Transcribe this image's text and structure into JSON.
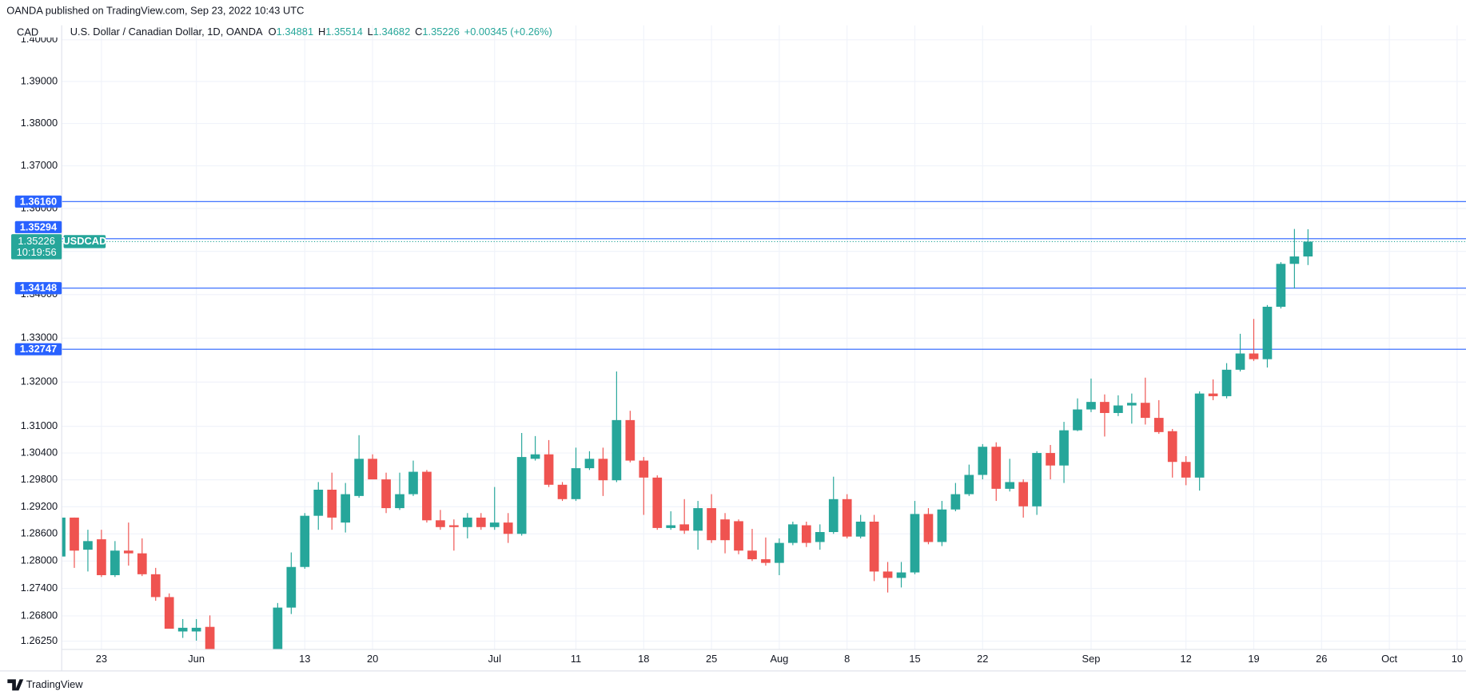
{
  "header": {
    "published": "OANDA published on TradingView.com, Sep 23, 2022 10:43 UTC",
    "footer": "TradingView"
  },
  "chart_data": {
    "type": "candlestick",
    "currency": "CAD",
    "symbol_title": "U.S. Dollar / Canadian Dollar, 1D, OANDA",
    "ohlc_labels": [
      "O",
      "H",
      "L",
      "C"
    ],
    "change": "+0.00345 (+0.26%)",
    "symbol": "USDCAD",
    "countdown": "10:19:56",
    "up_color": "#26a69a",
    "down_color": "#ef5350",
    "level_color": "#2962ff",
    "log": true,
    "grid": true,
    "ylim": [
      1.2607,
      1.4035
    ],
    "yticks": [
      {
        "value": 1.2625,
        "label": "1.26250"
      },
      {
        "value": 1.268,
        "label": "1.26800"
      },
      {
        "value": 1.274,
        "label": "1.27400"
      },
      {
        "value": 1.28,
        "label": "1.28000"
      },
      {
        "value": 1.286,
        "label": "1.28600"
      },
      {
        "value": 1.292,
        "label": "1.29200"
      },
      {
        "value": 1.298,
        "label": "1.29800"
      },
      {
        "value": 1.304,
        "label": "1.30400"
      },
      {
        "value": 1.31,
        "label": "1.31000"
      },
      {
        "value": 1.32,
        "label": "1.32000"
      },
      {
        "value": 1.33,
        "label": "1.33000"
      },
      {
        "value": 1.34,
        "label": "1.34000"
      },
      {
        "value": 1.35,
        "label": "1.35000"
      },
      {
        "value": 1.36,
        "label": "1.36000"
      },
      {
        "value": 1.37,
        "label": "1.37000"
      },
      {
        "value": 1.38,
        "label": "1.38000"
      },
      {
        "value": 1.39,
        "label": "1.39000"
      },
      {
        "value": 1.4,
        "label": "1.40000"
      }
    ],
    "levels": [
      {
        "value": 1.3616,
        "label": "1.36160"
      },
      1.35294,
      1.34148,
      1.32747
    ],
    "categories": [
      null,
      null,
      null,
      "23",
      null,
      null,
      null,
      null,
      null,
      null,
      "Jun",
      null,
      null,
      null,
      null,
      null,
      null,
      null,
      "13",
      null,
      null,
      null,
      null,
      "20",
      null,
      null,
      null,
      null,
      null,
      null,
      null,
      null,
      "Jul",
      null,
      null,
      null,
      null,
      null,
      "11",
      null,
      null,
      null,
      null,
      "18",
      null,
      null,
      null,
      null,
      "25",
      null,
      null,
      null,
      null,
      "Aug",
      null,
      null,
      null,
      null,
      "8",
      null,
      null,
      null,
      null,
      "15",
      null,
      null,
      null,
      null,
      "22",
      null,
      null,
      null,
      null,
      null,
      null,
      null,
      "Sep",
      null,
      null,
      null,
      null,
      null,
      null,
      "12",
      null,
      null,
      null,
      null,
      "19",
      null,
      null,
      null,
      null,
      "26",
      null,
      null,
      null,
      null,
      "Oct",
      null,
      null,
      null,
      null,
      "10"
    ],
    "open": [
      1.281,
      1.2896,
      1.2825,
      1.2848,
      1.2769,
      1.2823,
      1.2817,
      1.2771,
      1.2721,
      1.2646,
      1.2646,
      1.2656,
      null,
      null,
      null,
      null,
      1.259,
      1.2698,
      1.2787,
      1.29,
      1.2958,
      1.2885,
      1.2944,
      1.3027,
      1.2981,
      1.2917,
      1.2948,
      1.2998,
      1.289,
      1.2879,
      1.2875,
      1.2896,
      1.2875,
      1.2885,
      1.286,
      1.3027,
      1.3037,
      1.2969,
      1.2937,
      1.3006,
      1.3027,
      1.2979,
      1.3114,
      1.3023,
      1.2985,
      1.2873,
      1.2881,
      1.2867,
      1.2917,
      1.2892,
      1.2888,
      1.2823,
      1.2804,
      1.2796,
      1.284,
      1.2879,
      1.2842,
      1.2864,
      1.2937,
      1.2854,
      1.2887,
      1.2777,
      1.2763,
      1.2775,
      1.2904,
      1.2842,
      1.2914,
      1.2948,
      1.2991,
      1.3054,
      1.296,
      1.2975,
      1.2921,
      1.304,
      1.3012,
      1.3091,
      1.3138,
      1.3155,
      1.313,
      1.3147,
      1.3153,
      1.3119,
      1.3089,
      1.302,
      1.2985,
      1.3174,
      1.3168,
      1.3228,
      1.3265,
      1.3252,
      1.3372,
      1.3471,
      1.34881,
      null,
      null,
      null,
      null,
      null,
      null,
      null,
      null,
      null,
      null,
      null
    ],
    "high": [
      1.2896,
      1.2896,
      1.2869,
      1.2869,
      1.2844,
      1.2885,
      1.285,
      1.2785,
      1.2729,
      1.2673,
      1.2673,
      1.2681,
      null,
      null,
      null,
      null,
      1.2708,
      1.2819,
      1.2906,
      1.2975,
      1.2996,
      1.2973,
      1.308,
      1.3037,
      1.2996,
      1.2996,
      1.3023,
      1.3002,
      1.2913,
      1.2892,
      1.2906,
      1.2906,
      1.2964,
      1.2906,
      1.3085,
      1.3078,
      1.3069,
      1.2975,
      1.3052,
      1.3044,
      1.3052,
      1.3224,
      1.3135,
      1.3031,
      1.299,
      1.291,
      1.2937,
      1.2933,
      1.2948,
      1.2906,
      1.2892,
      1.2871,
      1.2852,
      1.285,
      1.2887,
      1.2887,
      1.2881,
      1.2987,
      1.2948,
      1.2902,
      1.2902,
      1.2798,
      1.2798,
      1.2933,
      1.2917,
      1.2933,
      1.2973,
      1.3014,
      1.306,
      1.3064,
      1.3027,
      1.2981,
      1.3044,
      1.3058,
      1.311,
      1.3163,
      1.3208,
      1.3172,
      1.317,
      1.3174,
      1.321,
      1.3159,
      1.3094,
      1.3033,
      1.3179,
      1.3206,
      1.3243,
      1.331,
      1.3344,
      1.3376,
      1.3475,
      1.3552,
      1.35514,
      null,
      null,
      null,
      null,
      null,
      null,
      null,
      null,
      null,
      null,
      null
    ],
    "low": [
      1.281,
      1.2785,
      1.2777,
      1.2765,
      1.2765,
      1.279,
      1.2767,
      1.2713,
      1.2652,
      1.2632,
      1.2626,
      1.257,
      null,
      null,
      null,
      null,
      1.258,
      1.2684,
      1.2783,
      1.2869,
      1.2869,
      1.2863,
      1.294,
      1.2981,
      1.2906,
      1.2913,
      1.2944,
      1.2885,
      1.2869,
      1.2823,
      1.285,
      1.2869,
      1.2869,
      1.284,
      1.2856,
      1.3023,
      1.2964,
      1.2933,
      1.2933,
      1.3002,
      1.2944,
      1.2975,
      1.3019,
      1.2902,
      1.2869,
      1.2869,
      1.286,
      1.2825,
      1.284,
      1.2817,
      1.2815,
      1.28,
      1.279,
      1.2769,
      1.2835,
      1.2831,
      1.2825,
      1.286,
      1.285,
      1.285,
      1.2756,
      1.2731,
      1.2742,
      1.2771,
      1.2837,
      1.2833,
      1.291,
      1.2944,
      1.2981,
      1.2933,
      1.2954,
      1.2896,
      1.2902,
      1.2981,
      1.2973,
      1.3089,
      1.3132,
      1.3077,
      1.3123,
      1.3106,
      1.3104,
      1.3083,
      1.2985,
      1.2968,
      1.2956,
      1.3159,
      1.3163,
      1.3224,
      1.3248,
      1.3233,
      1.3368,
      1.3414,
      1.34682,
      null,
      null,
      null,
      null,
      null,
      null,
      null,
      null,
      null,
      null,
      null
    ],
    "close": [
      1.2896,
      1.2823,
      1.2844,
      1.2769,
      1.2823,
      1.2817,
      1.2771,
      1.2721,
      1.2652,
      1.2654,
      1.2654,
      1.259,
      null,
      null,
      null,
      null,
      1.2698,
      1.2787,
      1.29,
      1.2958,
      1.2896,
      1.2948,
      1.3027,
      1.2981,
      1.2917,
      1.2948,
      1.2998,
      1.289,
      1.2875,
      1.2875,
      1.2896,
      1.2875,
      1.2885,
      1.286,
      1.3031,
      1.3037,
      1.2969,
      1.2937,
      1.3006,
      1.3027,
      1.2979,
      1.3114,
      1.3023,
      1.2985,
      1.2873,
      1.2879,
      1.2867,
      1.2917,
      1.2846,
      1.2846,
      1.2823,
      1.2804,
      1.2796,
      1.284,
      1.2881,
      1.284,
      1.2864,
      1.2937,
      1.2854,
      1.2887,
      1.2777,
      1.2763,
      1.2775,
      1.2904,
      1.2842,
      1.2914,
      1.2948,
      1.2991,
      1.3054,
      1.296,
      1.2975,
      1.2921,
      1.304,
      1.3012,
      1.3091,
      1.3138,
      1.3155,
      1.313,
      1.3147,
      1.3153,
      1.3119,
      1.3087,
      1.302,
      1.2985,
      1.3174,
      1.3168,
      1.3228,
      1.3265,
      1.3252,
      1.3372,
      1.3471,
      1.34881,
      1.35226,
      null,
      null,
      null,
      null,
      null,
      null,
      null,
      null,
      null,
      null,
      null
    ]
  }
}
